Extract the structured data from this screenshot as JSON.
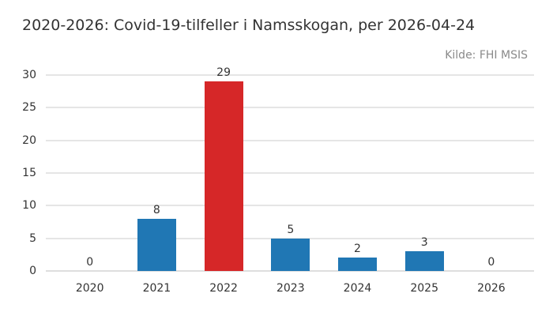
{
  "header": {
    "title": "2020-2026: Covid-19-tilfeller i Namsskogan, per 2026-04-24",
    "source": "Kilde: FHI MSIS"
  },
  "chart_data": {
    "type": "bar",
    "title": "2020-2026: Covid-19-tilfeller i Namsskogan, per 2026-04-24",
    "source": "Kilde: FHI MSIS",
    "categories": [
      "2020",
      "2021",
      "2022",
      "2023",
      "2024",
      "2025",
      "2026"
    ],
    "values": [
      0,
      8,
      29,
      5,
      2,
      3,
      0
    ],
    "value_labels": [
      "0",
      "8",
      "29",
      "5",
      "2",
      "3",
      "0"
    ],
    "xlabel": "",
    "ylabel": "",
    "ylim": [
      0,
      30
    ],
    "yticks": [
      0,
      5,
      10,
      15,
      20,
      25,
      30
    ],
    "grid": "horizontal-only",
    "legend": "none",
    "colors": {
      "bar_default": "#2077b4",
      "bar_highlight": "#d62728",
      "gridline": "#e5e5e5",
      "baseline": "#dedede",
      "title_text": "#333333",
      "tick_text": "#333333",
      "source_text": "#8a8a8a",
      "background": "#ffffff"
    },
    "bar_colors": [
      "#2077b4",
      "#2077b4",
      "#d62728",
      "#2077b4",
      "#2077b4",
      "#2077b4",
      "#2077b4"
    ],
    "highlighted_category": "2022"
  }
}
